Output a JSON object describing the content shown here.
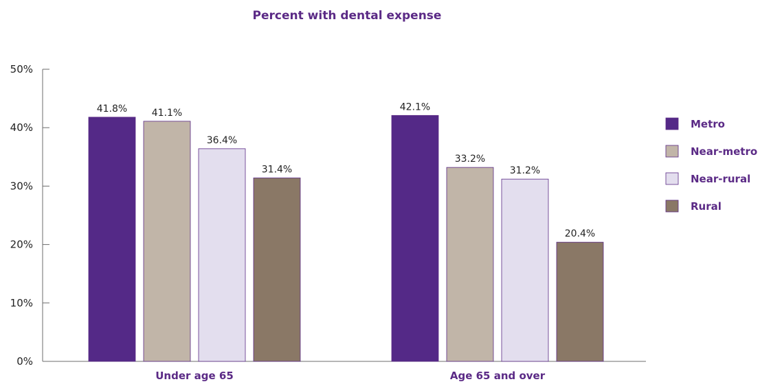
{
  "chart_data": {
    "type": "bar",
    "title": "Percent with dental expense",
    "categories": [
      "Under age 65",
      "Age 65 and over"
    ],
    "series": [
      {
        "name": "Metro",
        "color": "#542987",
        "values": [
          41.8,
          42.1
        ],
        "labels": [
          "41.8%",
          "42.1%"
        ]
      },
      {
        "name": "Near-metro",
        "color": "#c1b5a8",
        "values": [
          41.1,
          33.2
        ],
        "labels": [
          "41.1%",
          "33.2%"
        ]
      },
      {
        "name": "Near-rural",
        "color": "#e3deee",
        "values": [
          36.4,
          31.2
        ],
        "labels": [
          "36.4%",
          "31.2%"
        ]
      },
      {
        "name": "Rural",
        "color": "#8a7866",
        "values": [
          31.4,
          20.4
        ],
        "labels": [
          "31.4%",
          "20.4%"
        ]
      }
    ],
    "ylim": [
      0,
      50
    ],
    "yticks": [
      0,
      10,
      20,
      30,
      40,
      50
    ],
    "ytick_labels": [
      "0%",
      "10%",
      "20%",
      "30%",
      "40%",
      "50%"
    ],
    "legend_position": "right",
    "grid": false
  }
}
